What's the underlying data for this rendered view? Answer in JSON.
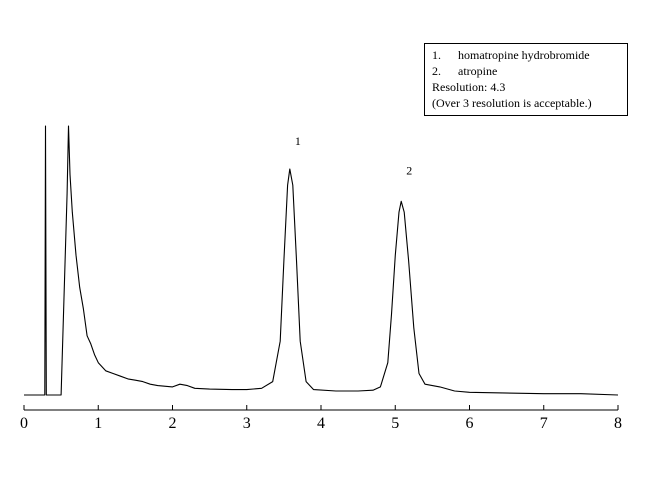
{
  "chart_data": {
    "type": "line",
    "title": "",
    "xlabel": "",
    "ylabel": "",
    "xlim": [
      0,
      8
    ],
    "ylim": [
      0,
      1
    ],
    "x_ticks": [
      0,
      1,
      2,
      3,
      4,
      5,
      6,
      7,
      8
    ],
    "x_tick_labels": [
      "0",
      "1",
      "2",
      "3",
      "4",
      "5",
      "6",
      "7",
      "8"
    ],
    "grid": false,
    "series": [
      {
        "points": [
          [
            0.0,
            0.0
          ],
          [
            0.28,
            0.0
          ],
          [
            0.29,
            1.0
          ],
          [
            0.3,
            0.0
          ],
          [
            0.42,
            0.0
          ],
          [
            0.5,
            0.0
          ],
          [
            0.58,
            0.75
          ],
          [
            0.6,
            1.0
          ],
          [
            0.62,
            0.82
          ],
          [
            0.65,
            0.68
          ],
          [
            0.7,
            0.52
          ],
          [
            0.75,
            0.4
          ],
          [
            0.8,
            0.32
          ],
          [
            0.85,
            0.22
          ],
          [
            0.9,
            0.19
          ],
          [
            0.95,
            0.15
          ],
          [
            1.0,
            0.12
          ],
          [
            1.1,
            0.09
          ],
          [
            1.2,
            0.08
          ],
          [
            1.3,
            0.07
          ],
          [
            1.4,
            0.06
          ],
          [
            1.5,
            0.055
          ],
          [
            1.6,
            0.05
          ],
          [
            1.7,
            0.04
          ],
          [
            1.8,
            0.035
          ],
          [
            2.0,
            0.03
          ],
          [
            2.1,
            0.04
          ],
          [
            2.2,
            0.035
          ],
          [
            2.3,
            0.025
          ],
          [
            2.5,
            0.022
          ],
          [
            2.8,
            0.02
          ],
          [
            3.0,
            0.02
          ],
          [
            3.2,
            0.025
          ],
          [
            3.35,
            0.05
          ],
          [
            3.45,
            0.2
          ],
          [
            3.5,
            0.5
          ],
          [
            3.55,
            0.78
          ],
          [
            3.58,
            0.84
          ],
          [
            3.62,
            0.78
          ],
          [
            3.67,
            0.5
          ],
          [
            3.72,
            0.2
          ],
          [
            3.8,
            0.05
          ],
          [
            3.9,
            0.02
          ],
          [
            4.2,
            0.015
          ],
          [
            4.5,
            0.015
          ],
          [
            4.7,
            0.018
          ],
          [
            4.8,
            0.03
          ],
          [
            4.9,
            0.12
          ],
          [
            4.95,
            0.3
          ],
          [
            5.0,
            0.52
          ],
          [
            5.05,
            0.68
          ],
          [
            5.08,
            0.72
          ],
          [
            5.12,
            0.68
          ],
          [
            5.18,
            0.5
          ],
          [
            5.25,
            0.25
          ],
          [
            5.32,
            0.08
          ],
          [
            5.4,
            0.04
          ],
          [
            5.6,
            0.03
          ],
          [
            5.8,
            0.015
          ],
          [
            6.0,
            0.01
          ],
          [
            7.0,
            0.005
          ],
          [
            7.5,
            0.005
          ],
          [
            8.0,
            0.0
          ]
        ]
      }
    ],
    "peak_labels": [
      {
        "text": "1",
        "x": 3.58,
        "y": 0.93
      },
      {
        "text": "2",
        "x": 5.08,
        "y": 0.82
      }
    ],
    "legend_position": "top-right",
    "annotation_box": {
      "items": [
        {
          "num": "1.",
          "label": "homatropine hydrobromide"
        },
        {
          "num": "2.",
          "label": "atropine"
        }
      ],
      "resolution": "Resolution: 4.3",
      "note": "(Over 3 resolution is acceptable.)"
    }
  }
}
